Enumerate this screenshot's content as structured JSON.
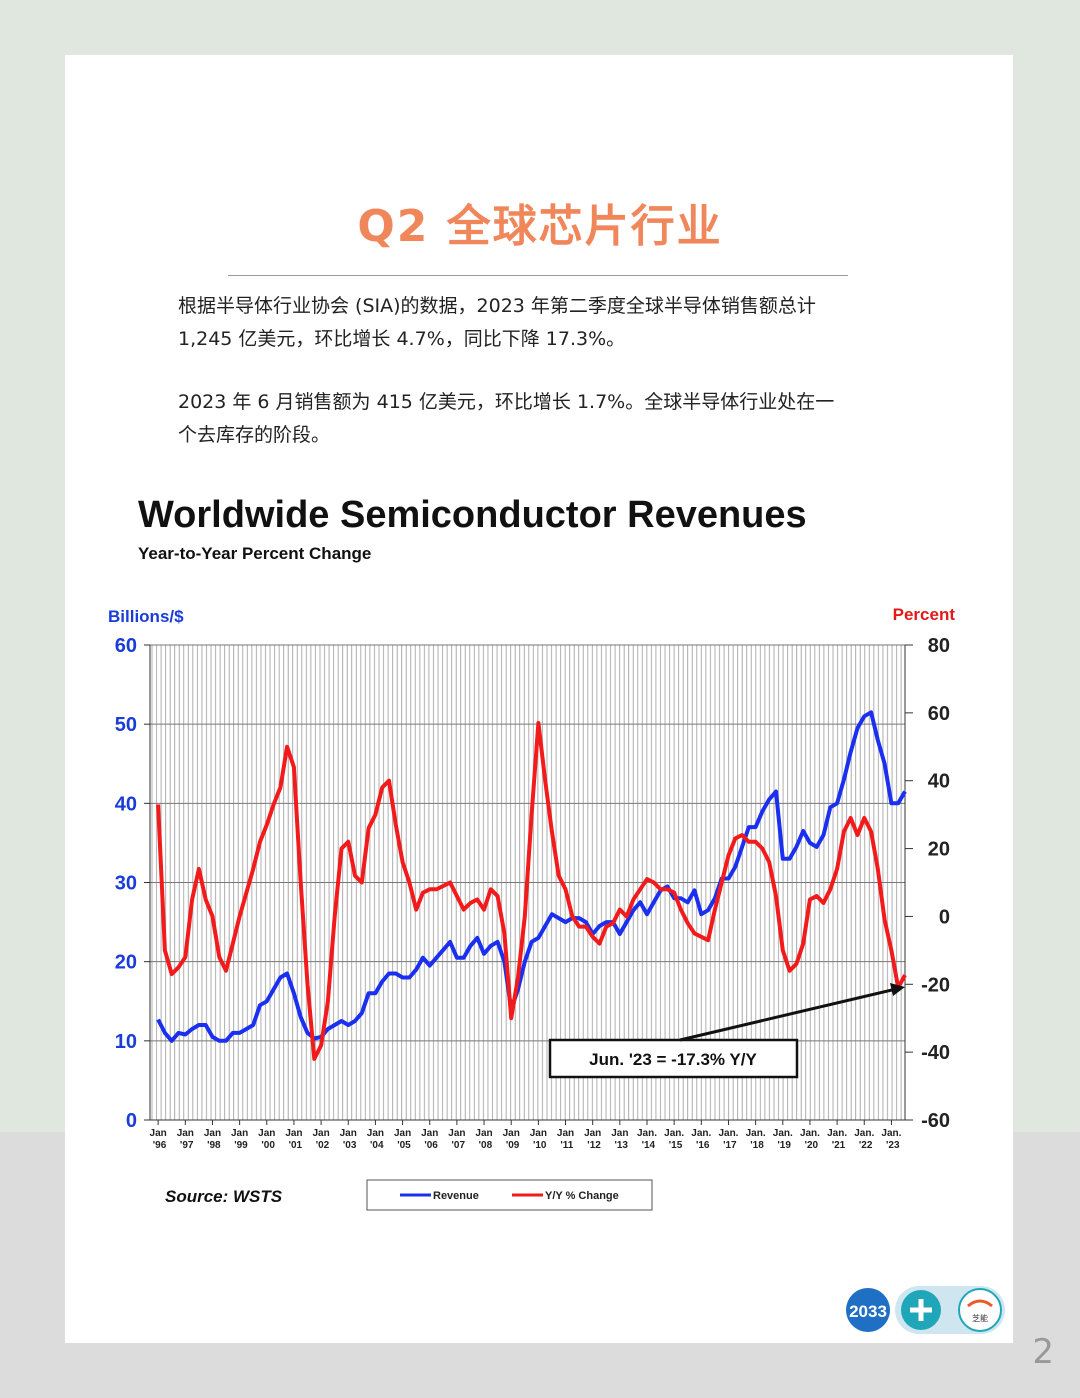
{
  "header": {
    "title": "Q2 全球芯片行业"
  },
  "paragraphs": [
    "根据半导体行业协会 (SIA)的数据，2023 年第二季度全球半导体销售额总计 1,245 亿美元，环比增长 4.7%，同比下降 17.3%。",
    "2023 年 6 月销售额为 415 亿美元，环比增长 1.7%。全球半导体行业处在一个去库存的阶段。"
  ],
  "chart_data": {
    "type": "line",
    "title": "Worldwide Semiconductor Revenues",
    "subtitle": "Year-to-Year Percent Change",
    "y_label": "Billions/$",
    "y2_label": "Percent",
    "x": [
      1996,
      1996.25,
      1996.5,
      1996.75,
      1997,
      1997.25,
      1997.5,
      1997.75,
      1998,
      1998.25,
      1998.5,
      1998.75,
      1999,
      1999.25,
      1999.5,
      1999.75,
      2000,
      2000.25,
      2000.5,
      2000.75,
      2001,
      2001.25,
      2001.5,
      2001.75,
      2002,
      2002.25,
      2002.5,
      2002.75,
      2003,
      2003.25,
      2003.5,
      2003.75,
      2004,
      2004.25,
      2004.5,
      2004.75,
      2005,
      2005.25,
      2005.5,
      2005.75,
      2006,
      2006.25,
      2006.5,
      2006.75,
      2007,
      2007.25,
      2007.5,
      2007.75,
      2008,
      2008.25,
      2008.5,
      2008.75,
      2009,
      2009.25,
      2009.5,
      2009.75,
      2010,
      2010.25,
      2010.5,
      2010.75,
      2011,
      2011.25,
      2011.5,
      2011.75,
      2012,
      2012.25,
      2012.5,
      2012.75,
      2013,
      2013.25,
      2013.5,
      2013.75,
      2014,
      2014.25,
      2014.5,
      2014.75,
      2015,
      2015.25,
      2015.5,
      2015.75,
      2016,
      2016.25,
      2016.5,
      2016.75,
      2017,
      2017.25,
      2017.5,
      2017.75,
      2018,
      2018.25,
      2018.5,
      2018.75,
      2019,
      2019.25,
      2019.5,
      2019.75,
      2020,
      2020.25,
      2020.5,
      2020.75,
      2021,
      2021.25,
      2021.5,
      2021.75,
      2022,
      2022.25,
      2022.5,
      2022.75,
      2023,
      2023.25,
      2023.5
    ],
    "xlim": [
      1995.7,
      2023.5
    ],
    "xticks": [
      {
        "value": 1996,
        "label": "Jan '96"
      },
      {
        "value": 1997,
        "label": "Jan '97"
      },
      {
        "value": 1998,
        "label": "Jan '98"
      },
      {
        "value": 1999,
        "label": "Jan '99"
      },
      {
        "value": 2000,
        "label": "Jan '00"
      },
      {
        "value": 2001,
        "label": "Jan '01"
      },
      {
        "value": 2002,
        "label": "Jan '02"
      },
      {
        "value": 2003,
        "label": "Jan '03"
      },
      {
        "value": 2004,
        "label": "Jan '04"
      },
      {
        "value": 2005,
        "label": "Jan '05"
      },
      {
        "value": 2006,
        "label": "Jan '06"
      },
      {
        "value": 2007,
        "label": "Jan '07"
      },
      {
        "value": 2008,
        "label": "Jan '08"
      },
      {
        "value": 2009,
        "label": "Jan '09"
      },
      {
        "value": 2010,
        "label": "Jan '10"
      },
      {
        "value": 2011,
        "label": "Jan '11"
      },
      {
        "value": 2012,
        "label": "Jan '12"
      },
      {
        "value": 2013,
        "label": "Jan '13"
      },
      {
        "value": 2014,
        "label": "Jan. '14"
      },
      {
        "value": 2015,
        "label": "Jan. '15"
      },
      {
        "value": 2016,
        "label": "Jan. '16"
      },
      {
        "value": 2017,
        "label": "Jan. '17"
      },
      {
        "value": 2018,
        "label": "Jan. '18"
      },
      {
        "value": 2019,
        "label": "Jan. '19"
      },
      {
        "value": 2020,
        "label": "Jan. '20"
      },
      {
        "value": 2021,
        "label": "Jan. '21"
      },
      {
        "value": 2022,
        "label": "Jan. '22"
      },
      {
        "value": 2023,
        "label": "Jan. '23"
      }
    ],
    "ylim": [
      0,
      60
    ],
    "yticks": [
      0,
      10,
      20,
      30,
      40,
      50,
      60
    ],
    "y2lim": [
      -60,
      80
    ],
    "y2ticks": [
      -60,
      -40,
      -20,
      0,
      20,
      40,
      60,
      80
    ],
    "grid": true,
    "series": [
      {
        "name": "Revenue",
        "color": "#1a2ff0",
        "values": [
          12.7,
          11,
          10,
          11,
          10.8,
          11.5,
          12,
          12,
          10.5,
          10,
          10,
          11,
          11,
          11.5,
          12,
          14.5,
          15,
          16.5,
          18,
          18.5,
          16,
          13,
          11,
          10.3,
          10.5,
          11.5,
          12,
          12.5,
          12,
          12.5,
          13.5,
          16,
          16,
          17.5,
          18.5,
          18.5,
          18,
          18,
          19,
          20.5,
          19.5,
          20.5,
          21.5,
          22.5,
          20.5,
          20.5,
          22,
          23,
          21,
          22,
          22.5,
          20,
          14,
          16.5,
          20,
          22.5,
          23,
          24.5,
          26,
          25.5,
          25,
          25.5,
          25.5,
          25,
          23.5,
          24.5,
          25,
          25,
          23.5,
          25,
          26.5,
          27.5,
          26,
          27.5,
          29,
          29.5,
          28,
          28,
          27.5,
          29,
          26,
          26.5,
          28,
          30.5,
          30.5,
          32,
          34.5,
          37,
          37,
          39,
          40.5,
          41.5,
          33,
          33,
          34.5,
          36.5,
          35,
          34.5,
          36,
          39.5,
          40,
          43,
          46.5,
          49.5,
          51,
          51.5,
          48,
          45,
          40,
          40,
          41.5
        ]
      },
      {
        "name": "Y/Y % Change",
        "color": "#f21a1a",
        "axis": "y2",
        "values": [
          33,
          -10,
          -17,
          -15,
          -12,
          5,
          14,
          5,
          0,
          -12,
          -16,
          -8,
          0,
          7,
          14,
          22,
          27,
          33,
          38,
          50,
          44,
          10,
          -20,
          -42,
          -38,
          -25,
          0,
          20,
          22,
          12,
          10,
          26,
          30,
          38,
          40,
          27,
          16,
          10,
          2,
          7,
          8,
          8,
          9,
          10,
          6,
          2,
          4,
          5,
          2,
          8,
          6,
          -5,
          -30,
          -18,
          0,
          30,
          57,
          40,
          25,
          12,
          8,
          0,
          -3,
          -3,
          -6,
          -8,
          -3,
          -2,
          2,
          0,
          5,
          8,
          11,
          10,
          8,
          8,
          7,
          2,
          -2,
          -5,
          -6,
          -7,
          2,
          10,
          18,
          23,
          24,
          22,
          22,
          20,
          16,
          6,
          -10,
          -16,
          -14,
          -8,
          5,
          6,
          4,
          8,
          14,
          25,
          29,
          24,
          29,
          25,
          14,
          -1,
          -10,
          -21,
          -17.3
        ]
      }
    ],
    "annotation": "Jun. '23 = -17.3% Y/Y",
    "source": "Source: WSTS"
  },
  "logos": [
    "2033",
    "芝能"
  ],
  "page_number": "2"
}
